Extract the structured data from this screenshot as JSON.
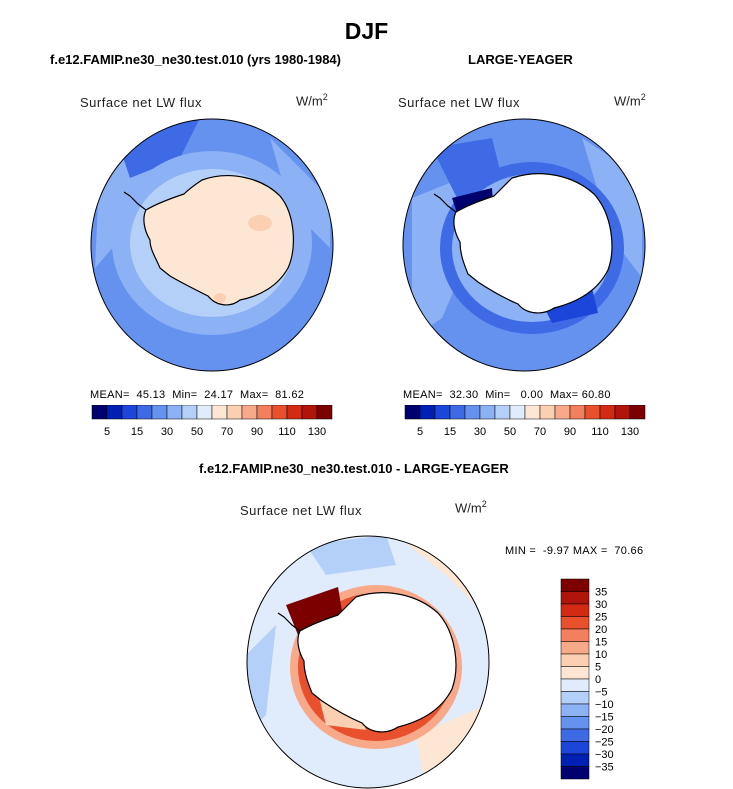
{
  "title": "DJF",
  "panels": [
    {
      "name": "model",
      "title": "f.e12.FAMIP.ne30_ne30.test.010 (yrs 1980-1984)",
      "variable": "Surface net LW flux",
      "units": "W/m",
      "units_exp": "2",
      "stats": {
        "mean_label": "MEAN=",
        "mean": "45.13",
        "min_label": "Min=",
        "min": "24.17",
        "max_label": "Max=",
        "max": "81.62"
      }
    },
    {
      "name": "obs",
      "title": "LARGE-YEAGER",
      "variable": "Surface net LW flux",
      "units": "W/m",
      "units_exp": "2",
      "stats": {
        "mean_label": "MEAN=",
        "mean": "32.30",
        "min_label": "Min=",
        "min": "0.00",
        "max_label": "Max=",
        "max": "60.80"
      }
    },
    {
      "name": "diff",
      "title": "f.e12.FAMIP.ne30_ne30.test.010 - LARGE-YEAGER",
      "variable": "Surface net LW flux",
      "units": "W/m",
      "units_exp": "2",
      "stats": {
        "min_label": "MIN =",
        "min": "-9.97",
        "max_label": "MAX =",
        "max": "70.66"
      }
    }
  ],
  "colorbar_abs": {
    "colors": [
      "#00006f",
      "#0020b4",
      "#1c45d9",
      "#3f6ae6",
      "#6592ef",
      "#8cb1f5",
      "#b4cff8",
      "#e0ecfb",
      "#fde7d4",
      "#fbcfb2",
      "#f7a98a",
      "#f27f5e",
      "#e8502e",
      "#d32a14",
      "#b0140a",
      "#7d0000"
    ],
    "ticks": [
      "5",
      "15",
      "30",
      "50",
      "70",
      "90",
      "110",
      "130"
    ]
  },
  "colorbar_diff": {
    "colors": [
      "#7d0000",
      "#b0140a",
      "#d32a14",
      "#e8502e",
      "#f27f5e",
      "#f7a98a",
      "#fbcfb2",
      "#fde7d4",
      "#e0ecfb",
      "#b4cff8",
      "#8cb1f5",
      "#6592ef",
      "#3f6ae6",
      "#1c45d9",
      "#0020b4",
      "#00006f"
    ],
    "ticks": [
      "35",
      "30",
      "25",
      "20",
      "15",
      "10",
      "5",
      "0",
      "−5",
      "−10",
      "−15",
      "−20",
      "−25",
      "−30",
      "−35"
    ]
  }
}
